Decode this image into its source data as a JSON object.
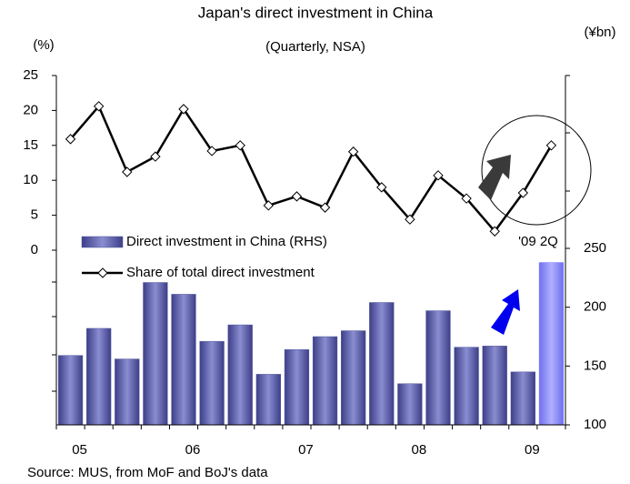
{
  "chart_data": {
    "type": "combo",
    "title": "Japan's direct investment in China",
    "subtitle": "(Quarterly, NSA)",
    "y_label": "(%)",
    "y2_label": "(¥bn)",
    "categories": [
      "05",
      null,
      null,
      null,
      "06",
      null,
      null,
      null,
      "07",
      null,
      null,
      null,
      "08",
      null,
      null,
      null,
      "09",
      null
    ],
    "series": [
      {
        "name": "Direct investment in China (RHS)",
        "type": "bar",
        "axis": "y2",
        "color": "#55589f",
        "highlight_color": "#8080ff",
        "values": [
          159,
          182,
          156,
          221,
          211,
          171,
          185,
          143,
          164,
          175,
          180,
          204,
          135,
          197,
          166,
          167,
          145,
          238
        ]
      },
      {
        "name": "Share of total direct investment",
        "type": "line",
        "color": "#000000",
        "values": [
          15.9,
          20.6,
          11.2,
          13.4,
          20.2,
          14.2,
          15.0,
          6.4,
          7.7,
          6.1,
          14.1,
          9.0,
          4.4,
          10.7,
          7.4,
          2.7,
          8.2,
          15.0
        ]
      }
    ],
    "ylim": [
      0,
      25
    ],
    "yticks": [
      0,
      5,
      10,
      15,
      20,
      25
    ],
    "y2lim": [
      100,
      250
    ],
    "y2ticks": [
      100,
      150,
      200,
      250
    ],
    "annotations": [
      "'09 2Q"
    ],
    "source": "Source: MUS, from MoF and BoJ's data"
  }
}
